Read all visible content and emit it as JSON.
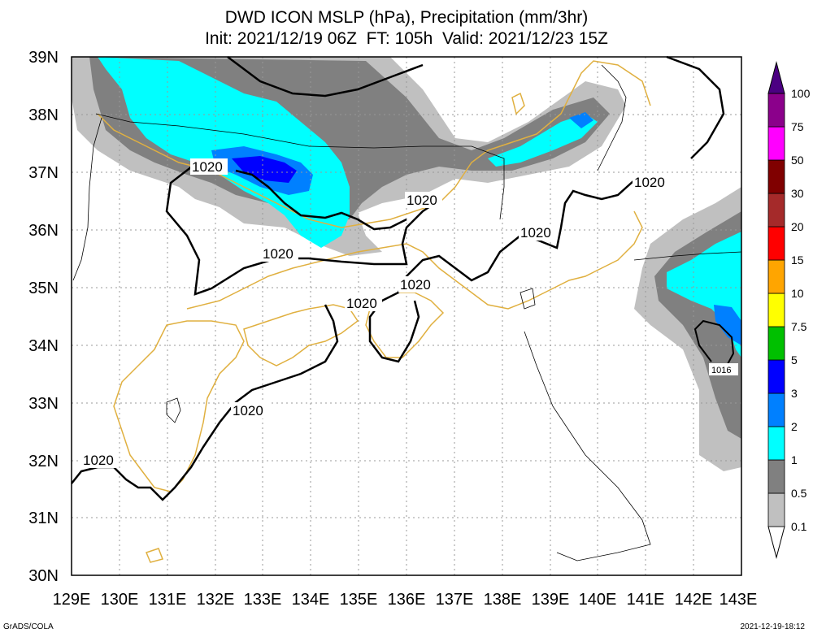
{
  "title": {
    "line1": "DWD ICON MSLP (hPa), Precipitation (mm/3hr)",
    "line2": "Init: 2021/12/19 06Z  FT: 105h  Valid: 2021/12/23 15Z"
  },
  "axes": {
    "lon_labels": [
      "129E",
      "130E",
      "131E",
      "132E",
      "133E",
      "134E",
      "135E",
      "136E",
      "137E",
      "138E",
      "139E",
      "140E",
      "141E",
      "142E",
      "143E"
    ],
    "lat_labels": [
      "30N",
      "31N",
      "32N",
      "33N",
      "34N",
      "35N",
      "36N",
      "37N",
      "38N",
      "39N"
    ]
  },
  "isobars": {
    "labels": [
      "1020",
      "1020",
      "1020",
      "1020",
      "1020",
      "1020",
      "1020",
      "1020",
      "1020",
      "1016"
    ]
  },
  "colorbar": {
    "levels": [
      "0.1",
      "0.5",
      "1",
      "2",
      "3",
      "5",
      "7.5",
      "10",
      "15",
      "20",
      "30",
      "50",
      "75",
      "100"
    ],
    "colors": [
      "#c0c0c0",
      "#808080",
      "#00ffff",
      "#0080ff",
      "#0000ff",
      "#00c000",
      "#ffff00",
      "#ffa500",
      "#ff0000",
      "#a52a2a",
      "#800000",
      "#ff00ff",
      "#8b008b",
      "#4b0082"
    ]
  },
  "colors": {
    "coast": "#e0b040",
    "precip_light": "#c0c0c0",
    "precip_mid": "#808080",
    "precip_cyan": "#00ffff",
    "precip_blue": "#0080ff",
    "precip_dark": "#0000ff"
  },
  "footer": {
    "left": "GrADS/COLA",
    "right": "2021-12-19-18:12"
  }
}
